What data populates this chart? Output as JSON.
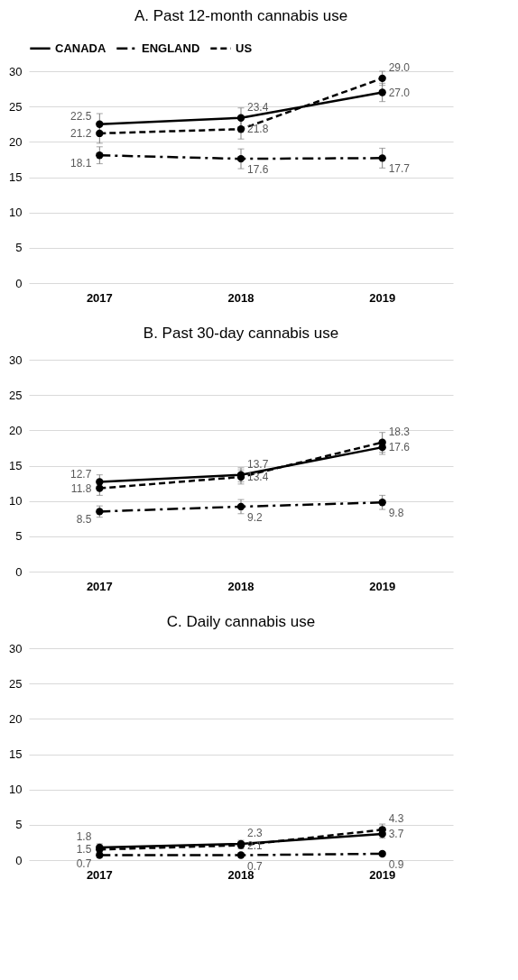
{
  "chart_data": [
    {
      "type": "line",
      "title": "A. Past 12-month cannabis use",
      "categories": [
        "2017",
        "2018",
        "2019"
      ],
      "legend": "top",
      "marker": "circle",
      "grid": "y",
      "ylim": [
        0,
        30
      ],
      "yticks": [
        0,
        5,
        10,
        15,
        20,
        25,
        30
      ],
      "series": [
        {
          "name": "CANADA",
          "color": "#000000",
          "line_style": "solid",
          "values": [
            22.5,
            23.4,
            27.0
          ],
          "value_labels": [
            "22.5",
            "23.4",
            "27.0"
          ],
          "errors": [
            1.5,
            1.4,
            1.3
          ]
        },
        {
          "name": "ENGLAND",
          "color": "#000000",
          "line_style": "dotted",
          "values": [
            18.1,
            17.6,
            17.7
          ],
          "value_labels": [
            "18.1",
            "17.6",
            "17.7"
          ],
          "errors": [
            1.2,
            1.4,
            1.4
          ]
        },
        {
          "name": "US",
          "color": "#000000",
          "line_style": "dashed",
          "values": [
            21.2,
            21.8,
            29.0
          ],
          "value_labels": [
            "21.2",
            "21.8",
            "29.0"
          ],
          "errors": [
            1.4,
            1.4,
            1.0
          ]
        }
      ]
    },
    {
      "type": "line",
      "title": "B. Past 30-day cannabis use",
      "categories": [
        "2017",
        "2018",
        "2019"
      ],
      "marker": "circle",
      "grid": "y",
      "ylim": [
        0,
        30
      ],
      "yticks": [
        0,
        5,
        10,
        15,
        20,
        25,
        30
      ],
      "series": [
        {
          "color": "#000000",
          "line_style": "solid",
          "values": [
            12.7,
            13.7,
            17.6
          ],
          "value_labels": [
            "12.7",
            "13.7",
            "17.6"
          ],
          "errors": [
            1.0,
            1.0,
            1.0
          ]
        },
        {
          "color": "#000000",
          "line_style": "dotted",
          "values": [
            8.5,
            9.2,
            9.8
          ],
          "value_labels": [
            "8.5",
            "9.2",
            "9.8"
          ],
          "errors": [
            0.8,
            1.0,
            1.0
          ]
        },
        {
          "color": "#000000",
          "line_style": "dashed",
          "values": [
            11.8,
            13.4,
            18.3
          ],
          "value_labels": [
            "11.8",
            "13.4",
            "18.3"
          ],
          "errors": [
            1.0,
            1.0,
            1.4
          ]
        }
      ]
    },
    {
      "type": "line",
      "title": "C. Daily cannabis use",
      "categories": [
        "2017",
        "2018",
        "2019"
      ],
      "marker": "circle",
      "grid": "y",
      "ylim": [
        0,
        30
      ],
      "yticks": [
        0,
        5,
        10,
        15,
        20,
        25,
        30
      ],
      "series": [
        {
          "color": "#000000",
          "line_style": "solid",
          "values": [
            1.8,
            2.3,
            3.7
          ],
          "value_labels": [
            "1.8",
            "2.3",
            "3.7"
          ],
          "errors": [
            0.5,
            0.5,
            0.6
          ]
        },
        {
          "color": "#000000",
          "line_style": "dotted",
          "values": [
            0.7,
            0.7,
            0.9
          ],
          "value_labels": [
            "0.7",
            "0.7",
            "0.9"
          ],
          "errors": [
            0.3,
            0.3,
            0.3
          ]
        },
        {
          "color": "#000000",
          "line_style": "dashed",
          "values": [
            1.5,
            2.1,
            4.3
          ],
          "value_labels": [
            "1.5",
            "2.1",
            "4.3"
          ],
          "errors": [
            0.5,
            0.5,
            0.8
          ]
        }
      ]
    }
  ]
}
